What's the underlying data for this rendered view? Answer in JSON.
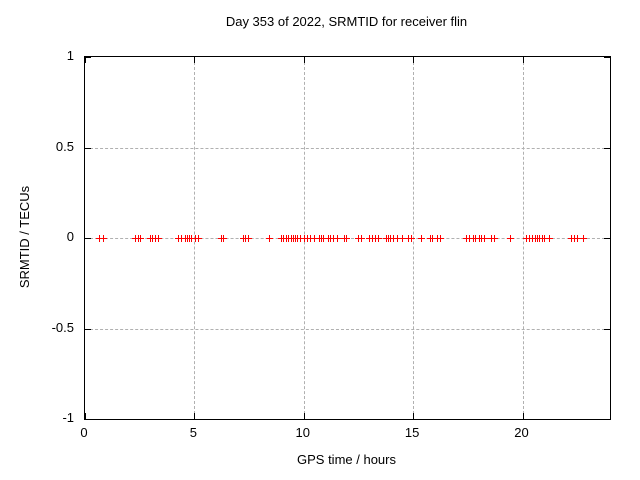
{
  "chart_data": {
    "type": "scatter",
    "title": "Day 353 of 2022, SRMTID for receiver flin",
    "xlabel": "GPS time / hours",
    "ylabel": "SRMTID / TECUs",
    "xlim": [
      0,
      24
    ],
    "ylim": [
      -1,
      1
    ],
    "xticks": [
      0,
      5,
      10,
      15,
      20
    ],
    "xtick_labels": [
      "0",
      "5",
      "10",
      "15",
      "20"
    ],
    "yticks": [
      1,
      0.5,
      0,
      -0.5,
      -1
    ],
    "ytick_labels": [
      "1",
      "0.5",
      "0",
      "-0.5",
      "-1"
    ],
    "grid": true,
    "legend": "none",
    "marker": "plus",
    "marker_color": "#ff0000",
    "grid_color": "#b0b0b0",
    "border_color": "#000000",
    "background_color": "#ffffff",
    "series": [
      {
        "name": "SRMTID",
        "y_constant": 0,
        "x": [
          0.65,
          0.8,
          2.3,
          2.4,
          2.5,
          2.95,
          3.05,
          3.2,
          3.35,
          4.25,
          4.4,
          4.55,
          4.65,
          4.75,
          4.85,
          5.05,
          5.15,
          6.2,
          6.3,
          7.2,
          7.3,
          7.45,
          8.4,
          8.95,
          9.05,
          9.2,
          9.3,
          9.4,
          9.5,
          9.6,
          9.7,
          9.85,
          10.0,
          10.15,
          10.3,
          10.45,
          10.7,
          10.8,
          10.9,
          11.1,
          11.2,
          11.35,
          11.5,
          11.85,
          11.95,
          12.5,
          12.6,
          13.0,
          13.1,
          13.25,
          13.4,
          13.75,
          13.85,
          13.95,
          14.1,
          14.25,
          14.5,
          14.75,
          14.9,
          15.35,
          15.75,
          15.85,
          16.1,
          16.25,
          17.4,
          17.55,
          17.75,
          17.85,
          18.0,
          18.1,
          18.25,
          18.55,
          18.7,
          19.45,
          20.15,
          20.3,
          20.45,
          20.55,
          20.65,
          20.75,
          20.9,
          21.0,
          21.2,
          22.2,
          22.35,
          22.5,
          22.75
        ]
      }
    ]
  }
}
